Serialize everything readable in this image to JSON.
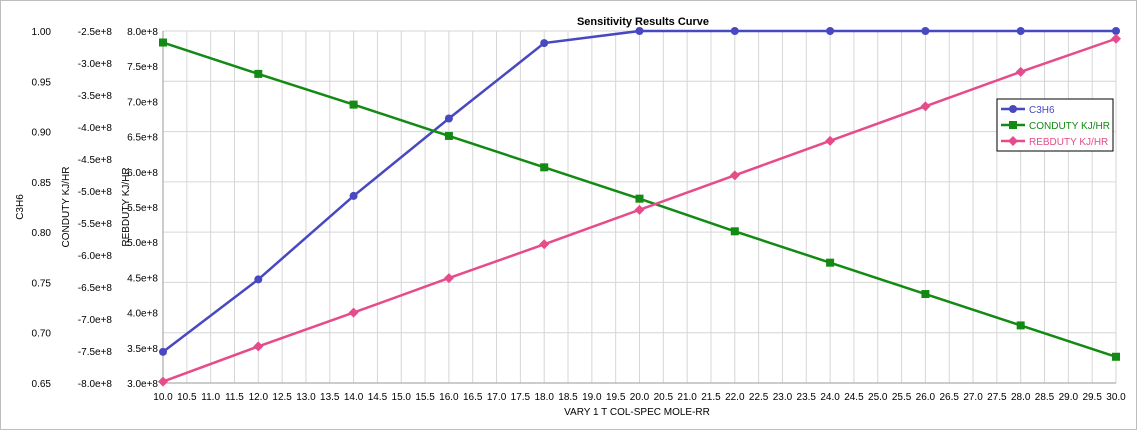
{
  "chart_data": {
    "type": "line",
    "title": "Sensitivity Results Curve",
    "xlabel": "VARY   1 T COL-SPEC MOLE-RR",
    "x": [
      10,
      12,
      14,
      16,
      18,
      20,
      22,
      24,
      26,
      28,
      30
    ],
    "xlim": [
      10,
      30
    ],
    "x_ticks": [
      "10.0",
      "10.5",
      "11.0",
      "11.5",
      "12.0",
      "12.5",
      "13.0",
      "13.5",
      "14.0",
      "14.5",
      "15.0",
      "15.5",
      "16.0",
      "16.5",
      "17.0",
      "17.5",
      "18.0",
      "18.5",
      "19.0",
      "19.5",
      "20.0",
      "20.5",
      "21.0",
      "21.5",
      "22.0",
      "22.5",
      "23.0",
      "23.5",
      "24.0",
      "24.5",
      "25.0",
      "25.5",
      "26.0",
      "26.5",
      "27.0",
      "27.5",
      "28.0",
      "28.5",
      "29.0",
      "29.5",
      "30.0"
    ],
    "y_axes": [
      {
        "label": "C3H6",
        "range": [
          0.65,
          1.0
        ],
        "ticks": [
          "1.00",
          "0.95",
          "0.90",
          "0.85",
          "0.80",
          "0.75",
          "0.70",
          "0.65"
        ]
      },
      {
        "label": "CONDUTY KJ/HR",
        "range": [
          -800000000.0,
          -250000000.0
        ],
        "ticks": [
          "-2.5e+8",
          "-3.0e+8",
          "-3.5e+8",
          "-4.0e+8",
          "-4.5e+8",
          "-5.0e+8",
          "-5.5e+8",
          "-6.0e+8",
          "-6.5e+8",
          "-7.0e+8",
          "-7.5e+8",
          "-8.0e+8"
        ]
      },
      {
        "label": "REBDUTY KJ/HR",
        "range": [
          300000000.0,
          800000000.0
        ],
        "ticks": [
          "8.0e+8",
          "7.5e+8",
          "7.0e+8",
          "6.5e+8",
          "6.0e+8",
          "5.5e+8",
          "5.0e+8",
          "4.5e+8",
          "4.0e+8",
          "3.5e+8",
          "3.0e+8"
        ]
      }
    ],
    "series": [
      {
        "name": "C3H6",
        "axis": 0,
        "color": "#4848c0",
        "marker": "circle",
        "values": [
          0.681,
          0.753,
          0.836,
          0.913,
          0.988,
          1.0,
          1.0,
          1.0,
          1.0,
          1.0,
          1.0
        ]
      },
      {
        "name": "CONDUTY KJ/HR",
        "axis": 1,
        "color": "#138a13",
        "marker": "square",
        "values": [
          -268000000.0,
          -317000000.0,
          -365000000.0,
          -414000000.0,
          -463000000.0,
          -512000000.0,
          -563000000.0,
          -612000000.0,
          -661000000.0,
          -710000000.0,
          -759000000.0
        ]
      },
      {
        "name": "REBDUTY KJ/HR",
        "axis": 2,
        "color": "#e64b8a",
        "marker": "diamond",
        "values": [
          302000000.0,
          352000000.0,
          400000000.0,
          449000000.0,
          497000000.0,
          546000000.0,
          595000000.0,
          644000000.0,
          693000000.0,
          742000000.0,
          789000000.0
        ]
      }
    ],
    "grid": true,
    "legend_position": "right"
  }
}
